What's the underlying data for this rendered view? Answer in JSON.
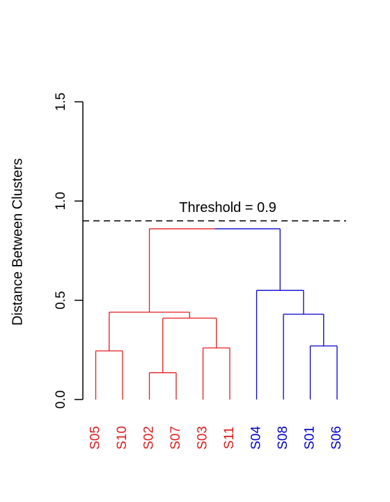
{
  "chart_data": {
    "type": "dendrogram",
    "title": "",
    "ylabel": "Distance Between Clusters",
    "xlabel": "",
    "ylim": [
      0,
      1.5
    ],
    "yticks": [
      0.0,
      0.5,
      1.0,
      1.5
    ],
    "ytick_labels": [
      "0.0",
      "0.5",
      "1.0",
      "1.5"
    ],
    "threshold": {
      "value": 0.9,
      "label": "Threshold = 0.9",
      "style": "dashed"
    },
    "colors": {
      "cluster_red": "#e41a1c",
      "cluster_blue": "#0000cc",
      "axis": "#000000"
    },
    "leaves": [
      {
        "label": "S05",
        "cluster": "red"
      },
      {
        "label": "S10",
        "cluster": "red"
      },
      {
        "label": "S02",
        "cluster": "red"
      },
      {
        "label": "S07",
        "cluster": "red"
      },
      {
        "label": "S03",
        "cluster": "red"
      },
      {
        "label": "S11",
        "cluster": "red"
      },
      {
        "label": "S04",
        "cluster": "blue"
      },
      {
        "label": "S08",
        "cluster": "blue"
      },
      {
        "label": "S01",
        "cluster": "blue"
      },
      {
        "label": "S06",
        "cluster": "blue"
      }
    ],
    "merges": [
      {
        "id": "m1",
        "left": "S05",
        "right": "S10",
        "height": 0.245,
        "cluster": "red"
      },
      {
        "id": "m2",
        "left": "S02",
        "right": "S07",
        "height": 0.135,
        "cluster": "red"
      },
      {
        "id": "m3",
        "left": "S03",
        "right": "S11",
        "height": 0.26,
        "cluster": "red"
      },
      {
        "id": "m4",
        "left": "m2",
        "right": "m3",
        "height": 0.41,
        "cluster": "red"
      },
      {
        "id": "m5",
        "left": "m1",
        "right": "m4",
        "height": 0.44,
        "cluster": "red"
      },
      {
        "id": "m6",
        "left": "S01",
        "right": "S06",
        "height": 0.27,
        "cluster": "blue"
      },
      {
        "id": "m7",
        "left": "S08",
        "right": "m6",
        "height": 0.43,
        "cluster": "blue"
      },
      {
        "id": "m8",
        "left": "S04",
        "right": "m7",
        "height": 0.55,
        "cluster": "blue"
      },
      {
        "id": "m9",
        "left": "m5",
        "right": "m8",
        "height": 0.86,
        "cluster": "split"
      }
    ]
  }
}
